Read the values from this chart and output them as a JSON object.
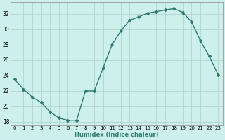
{
  "x": [
    0,
    1,
    2,
    3,
    4,
    5,
    6,
    7,
    8,
    9,
    10,
    11,
    12,
    13,
    14,
    15,
    16,
    17,
    18,
    19,
    20,
    21,
    22,
    23
  ],
  "y": [
    23.5,
    22.2,
    21.2,
    20.5,
    19.3,
    18.5,
    18.2,
    18.2,
    22.0,
    22.0,
    25.0,
    28.0,
    29.8,
    31.2,
    31.6,
    32.1,
    32.3,
    32.5,
    32.7,
    32.2,
    31.0,
    28.5,
    26.5,
    24.1
  ],
  "xlabel": "Humidex (Indice chaleur)",
  "xlim": [
    -0.5,
    23.5
  ],
  "ylim": [
    17.5,
    33.5
  ],
  "yticks": [
    18,
    20,
    22,
    24,
    26,
    28,
    30,
    32
  ],
  "xtick_labels": [
    "0",
    "1",
    "2",
    "3",
    "4",
    "5",
    "6",
    "7",
    "8",
    "9",
    "10",
    "11",
    "12",
    "13",
    "14",
    "15",
    "16",
    "17",
    "18",
    "19",
    "20",
    "21",
    "22",
    "23"
  ],
  "line_color": "#2e7d6e",
  "marker": "D",
  "marker_size": 2.0,
  "bg_color": "#cef0ec",
  "grid_color": "#b0d4ce",
  "line_width": 1.0
}
